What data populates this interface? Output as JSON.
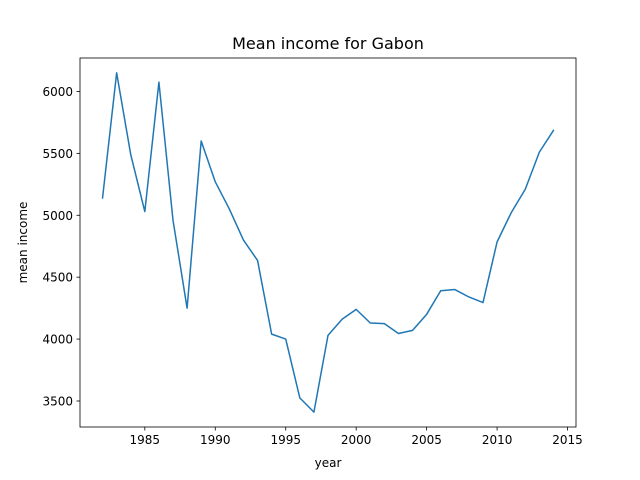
{
  "chart_data": {
    "type": "line",
    "title": "Mean income for Gabon",
    "xlabel": "year",
    "ylabel": "mean income",
    "xlim": [
      1980.4,
      2015.6
    ],
    "ylim": [
      3290,
      6270
    ],
    "xticks": [
      1985,
      1990,
      1995,
      2000,
      2005,
      2010,
      2015
    ],
    "yticks": [
      3500,
      4000,
      4500,
      5000,
      5500,
      6000
    ],
    "grid": false,
    "line_color": "#1f77b4",
    "series": [
      {
        "x": [
          1982,
          1983,
          1984,
          1985,
          1986,
          1987,
          1988,
          1989,
          1990,
          1991,
          1992,
          1993,
          1994,
          1995,
          1996,
          1997,
          1998,
          1999,
          2000,
          2001,
          2002,
          2003,
          2004,
          2005,
          2006,
          2007,
          2008,
          2009,
          2010,
          2011,
          2012,
          2013,
          2014
        ],
        "values": [
          5140,
          6150,
          5490,
          5030,
          6075,
          4960,
          4250,
          5600,
          5270,
          5050,
          4800,
          4635,
          4040,
          4000,
          3525,
          3410,
          4030,
          4160,
          4240,
          4130,
          4125,
          4045,
          4070,
          4200,
          4390,
          4400,
          4340,
          4295,
          4785,
          5020,
          5210,
          5510,
          5685
        ]
      }
    ]
  }
}
